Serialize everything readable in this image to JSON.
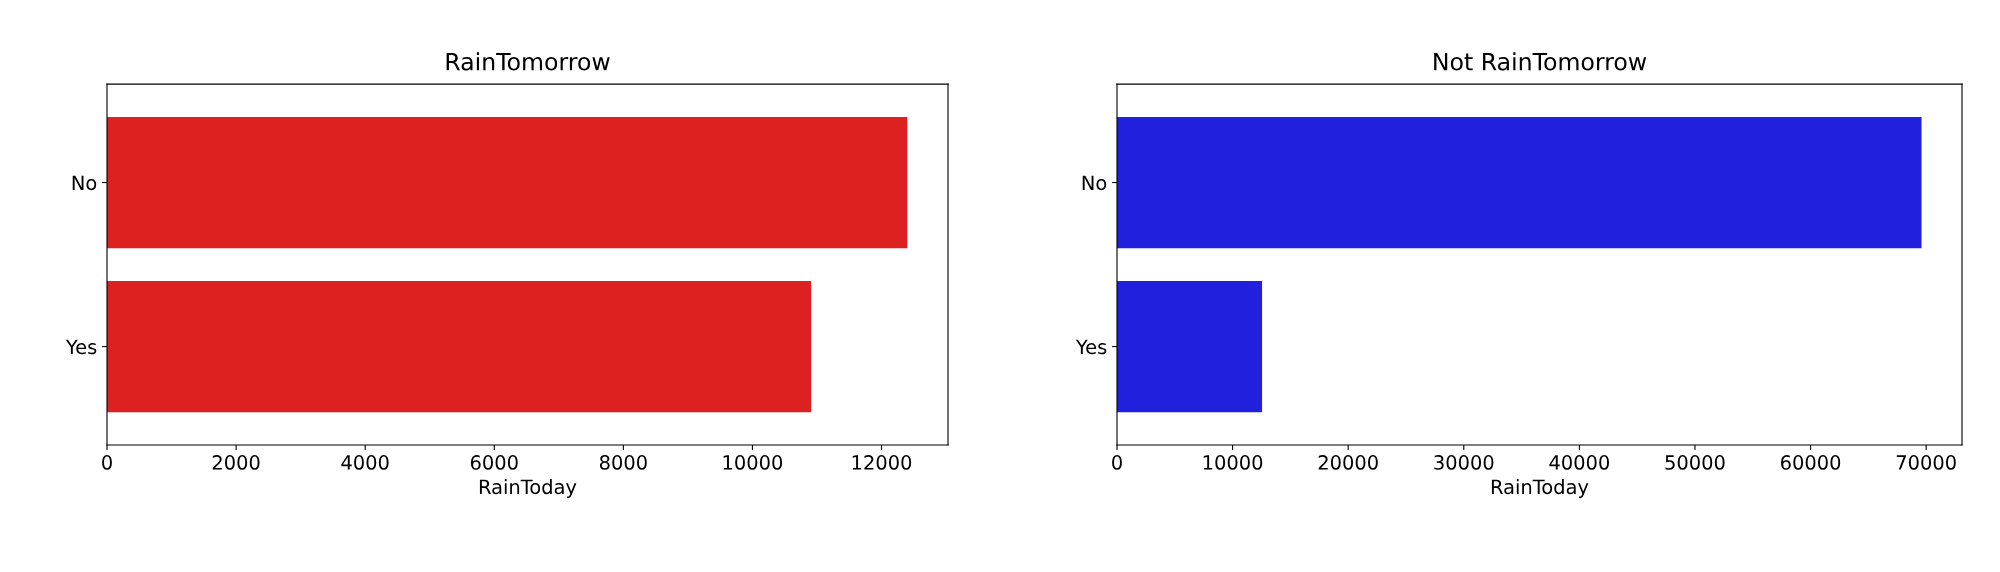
{
  "chart_data": [
    {
      "type": "bar",
      "orientation": "horizontal",
      "title": "RainTomorrow",
      "xlabel": "RainToday",
      "categories": [
        "No",
        "Yes"
      ],
      "values": [
        12400,
        10910
      ],
      "color": "#dd2020",
      "xlim": [
        0,
        13030
      ],
      "xticks": [
        0,
        2000,
        4000,
        6000,
        8000,
        10000,
        12000
      ],
      "grid": false,
      "legend": false
    },
    {
      "type": "bar",
      "orientation": "horizontal",
      "title": "Not RainTomorrow",
      "xlabel": "RainToday",
      "categories": [
        "No",
        "Yes"
      ],
      "values": [
        69600,
        12550
      ],
      "color": "#2020dd",
      "xlim": [
        0,
        73100
      ],
      "xticks": [
        0,
        10000,
        20000,
        30000,
        40000,
        50000,
        60000,
        70000
      ],
      "grid": false,
      "legend": false
    }
  ]
}
